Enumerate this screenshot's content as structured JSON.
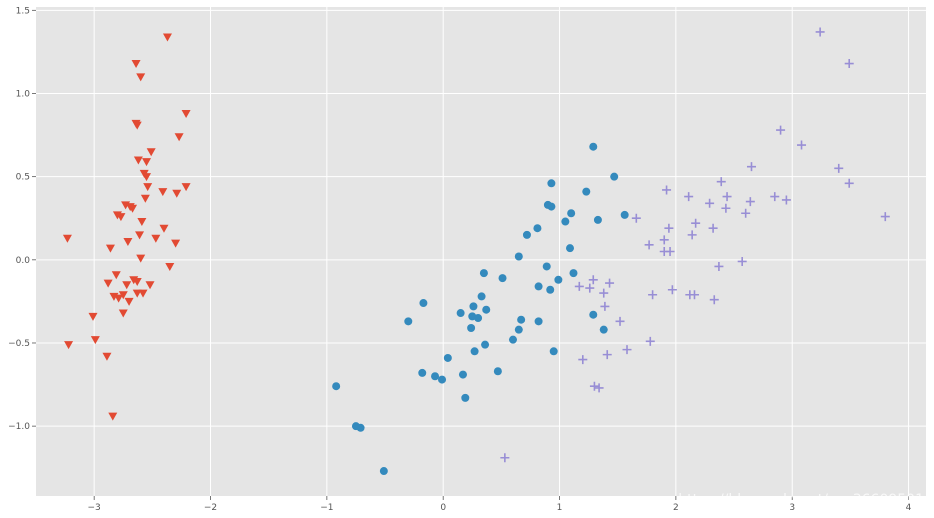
{
  "chart_data": {
    "type": "scatter",
    "xlim": [
      -3.5,
      4.15
    ],
    "ylim": [
      -1.42,
      1.52
    ],
    "x_ticks": [
      -3,
      -2,
      -1,
      0,
      1,
      2,
      3,
      4
    ],
    "y_ticks": [
      1.5,
      1.0,
      0.5,
      0.0,
      -0.5,
      -1.0
    ],
    "x_tick_labels": [
      "−3",
      "−2",
      "−1",
      "0",
      "1",
      "2",
      "3",
      "4"
    ],
    "y_tick_labels": [
      "1.5",
      "1.0",
      "0.5",
      "0.0",
      "−0.5",
      "−1.0"
    ],
    "grid": true,
    "background": "#e5e5e5",
    "series": [
      {
        "marker": "triangle-down",
        "color": "#e24a33",
        "points": [
          [
            -3.23,
            0.13
          ],
          [
            -3.22,
            -0.51
          ],
          [
            -3.01,
            -0.34
          ],
          [
            -2.99,
            -0.48
          ],
          [
            -2.89,
            -0.58
          ],
          [
            -2.84,
            -0.94
          ],
          [
            -2.88,
            -0.14
          ],
          [
            -2.86,
            0.07
          ],
          [
            -2.83,
            -0.22
          ],
          [
            -2.81,
            -0.09
          ],
          [
            -2.79,
            -0.23
          ],
          [
            -2.8,
            0.27
          ],
          [
            -2.77,
            0.26
          ],
          [
            -2.75,
            -0.21
          ],
          [
            -2.75,
            -0.32
          ],
          [
            -2.73,
            0.33
          ],
          [
            -2.72,
            -0.15
          ],
          [
            -2.7,
            -0.25
          ],
          [
            -2.71,
            0.11
          ],
          [
            -2.69,
            0.32
          ],
          [
            -2.66,
            -0.12
          ],
          [
            -2.67,
            0.31
          ],
          [
            -2.64,
            0.82
          ],
          [
            -2.64,
            1.18
          ],
          [
            -2.63,
            -0.13
          ],
          [
            -2.63,
            0.81
          ],
          [
            -2.63,
            -0.2
          ],
          [
            -2.62,
            0.6
          ],
          [
            -2.61,
            0.15
          ],
          [
            -2.6,
            0.01
          ],
          [
            -2.6,
            1.1
          ],
          [
            -2.59,
            0.23
          ],
          [
            -2.58,
            -0.2
          ],
          [
            -2.57,
            0.52
          ],
          [
            -2.56,
            0.37
          ],
          [
            -2.55,
            0.5
          ],
          [
            -2.55,
            0.59
          ],
          [
            -2.54,
            0.44
          ],
          [
            -2.52,
            -0.15
          ],
          [
            -2.51,
            0.65
          ],
          [
            -2.47,
            0.13
          ],
          [
            -2.41,
            0.41
          ],
          [
            -2.4,
            0.19
          ],
          [
            -2.37,
            1.34
          ],
          [
            -2.35,
            -0.04
          ],
          [
            -2.3,
            0.1
          ],
          [
            -2.29,
            0.4
          ],
          [
            -2.27,
            0.74
          ],
          [
            -2.21,
            0.88
          ],
          [
            -2.21,
            0.44
          ]
        ]
      },
      {
        "marker": "circle",
        "color": "#348abd",
        "points": [
          [
            -0.92,
            -0.76
          ],
          [
            -0.75,
            -1.0
          ],
          [
            -0.71,
            -1.01
          ],
          [
            -0.51,
            -1.27
          ],
          [
            -0.3,
            -0.37
          ],
          [
            -0.18,
            -0.68
          ],
          [
            -0.17,
            -0.26
          ],
          [
            -0.07,
            -0.7
          ],
          [
            -0.01,
            -0.72
          ],
          [
            0.04,
            -0.59
          ],
          [
            0.15,
            -0.32
          ],
          [
            0.17,
            -0.69
          ],
          [
            0.19,
            -0.83
          ],
          [
            0.24,
            -0.41
          ],
          [
            0.25,
            -0.34
          ],
          [
            0.26,
            -0.28
          ],
          [
            0.27,
            -0.55
          ],
          [
            0.3,
            -0.35
          ],
          [
            0.33,
            -0.22
          ],
          [
            0.35,
            -0.08
          ],
          [
            0.36,
            -0.51
          ],
          [
            0.37,
            -0.3
          ],
          [
            0.47,
            -0.67
          ],
          [
            0.51,
            -0.11
          ],
          [
            0.6,
            -0.48
          ],
          [
            0.65,
            0.02
          ],
          [
            0.65,
            -0.42
          ],
          [
            0.67,
            -0.36
          ],
          [
            0.72,
            0.15
          ],
          [
            0.81,
            0.19
          ],
          [
            0.82,
            -0.16
          ],
          [
            0.82,
            -0.37
          ],
          [
            0.89,
            -0.04
          ],
          [
            0.9,
            0.33
          ],
          [
            0.92,
            -0.18
          ],
          [
            0.93,
            0.46
          ],
          [
            0.93,
            0.32
          ],
          [
            0.95,
            -0.55
          ],
          [
            0.99,
            -0.12
          ],
          [
            1.05,
            0.23
          ],
          [
            1.09,
            0.07
          ],
          [
            1.1,
            0.28
          ],
          [
            1.12,
            -0.08
          ],
          [
            1.23,
            0.41
          ],
          [
            1.29,
            0.68
          ],
          [
            1.29,
            -0.33
          ],
          [
            1.33,
            0.24
          ],
          [
            1.38,
            -0.42
          ],
          [
            1.47,
            0.5
          ],
          [
            1.56,
            0.27
          ]
        ]
      },
      {
        "marker": "plus",
        "color": "#988ed5",
        "points": [
          [
            0.53,
            -1.19
          ],
          [
            1.17,
            -0.16
          ],
          [
            1.2,
            -0.6
          ],
          [
            1.26,
            -0.17
          ],
          [
            1.29,
            -0.12
          ],
          [
            1.3,
            -0.76
          ],
          [
            1.34,
            -0.77
          ],
          [
            1.38,
            -0.2
          ],
          [
            1.39,
            -0.28
          ],
          [
            1.41,
            -0.57
          ],
          [
            1.43,
            -0.14
          ],
          [
            1.52,
            -0.37
          ],
          [
            1.58,
            -0.54
          ],
          [
            1.66,
            0.25
          ],
          [
            1.77,
            0.09
          ],
          [
            1.78,
            -0.49
          ],
          [
            1.8,
            -0.21
          ],
          [
            1.9,
            0.12
          ],
          [
            1.9,
            0.05
          ],
          [
            1.92,
            0.42
          ],
          [
            1.94,
            0.19
          ],
          [
            1.95,
            0.05
          ],
          [
            1.97,
            -0.18
          ],
          [
            2.11,
            0.38
          ],
          [
            2.12,
            -0.21
          ],
          [
            2.14,
            0.15
          ],
          [
            2.16,
            -0.21
          ],
          [
            2.17,
            0.22
          ],
          [
            2.29,
            0.34
          ],
          [
            2.32,
            0.19
          ],
          [
            2.33,
            -0.24
          ],
          [
            2.37,
            -0.04
          ],
          [
            2.39,
            0.47
          ],
          [
            2.43,
            0.31
          ],
          [
            2.44,
            0.38
          ],
          [
            2.57,
            -0.01
          ],
          [
            2.6,
            0.28
          ],
          [
            2.64,
            0.35
          ],
          [
            2.65,
            0.56
          ],
          [
            2.85,
            0.38
          ],
          [
            2.9,
            0.78
          ],
          [
            2.95,
            0.36
          ],
          [
            3.08,
            0.69
          ],
          [
            3.24,
            1.37
          ],
          [
            3.4,
            0.55
          ],
          [
            3.49,
            0.46
          ],
          [
            3.49,
            1.18
          ],
          [
            3.8,
            0.26
          ]
        ]
      }
    ]
  },
  "watermark": "https://blog.csdn.net/qq_36609501"
}
